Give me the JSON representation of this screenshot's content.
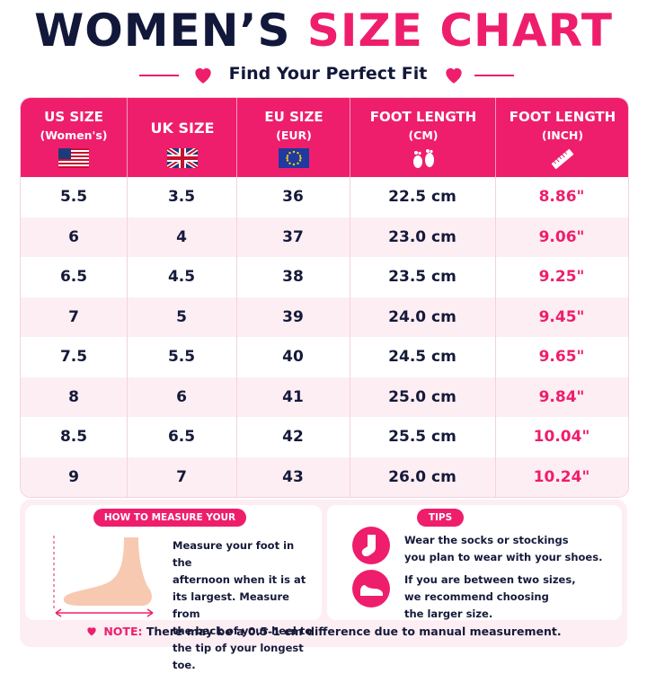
{
  "title": {
    "part1": "WOMEN’S",
    "part2": "SIZE CHART"
  },
  "subtitle": "Find Your Perfect Fit",
  "colors": {
    "accent": "#ee1e6c",
    "navy": "#12183a",
    "row_tint": "#fdeef3"
  },
  "table": {
    "headers": [
      {
        "line1": "US SIZE",
        "line2": "(Women's)",
        "icon": "us-flag-icon"
      },
      {
        "line1": "UK SIZE",
        "line2": "",
        "icon": "uk-flag-icon"
      },
      {
        "line1": "EU SIZE",
        "line2": "(EUR)",
        "icon": "eu-flag-icon"
      },
      {
        "line1": "FOOT LENGTH",
        "line2": "(CM)",
        "icon": "footprint-icon"
      },
      {
        "line1": "FOOT LENGTH",
        "line2": "(INCH)",
        "icon": "ruler-icon"
      }
    ],
    "rows": [
      [
        "5.5",
        "3.5",
        "36",
        "22.5 cm",
        "8.86\""
      ],
      [
        "6",
        "4",
        "37",
        "23.0 cm",
        "9.06\""
      ],
      [
        "6.5",
        "4.5",
        "38",
        "23.5 cm",
        "9.25\""
      ],
      [
        "7",
        "5",
        "39",
        "24.0 cm",
        "9.45\""
      ],
      [
        "7.5",
        "5.5",
        "40",
        "24.5 cm",
        "9.65\""
      ],
      [
        "8",
        "6",
        "41",
        "25.0 cm",
        "9.84\""
      ],
      [
        "8.5",
        "6.5",
        "42",
        "25.5 cm",
        "10.04\""
      ],
      [
        "9",
        "7",
        "43",
        "26.0 cm",
        "10.24\""
      ]
    ]
  },
  "measure": {
    "label": "HOW TO MEASURE YOUR FOOT",
    "lines": [
      "Measure your foot in the",
      "afternoon when it is at",
      "its largest. Measure from",
      "the back of your heel to",
      "the tip of your longest toe."
    ]
  },
  "tips": {
    "label": "TIPS",
    "tip1": [
      "Wear the socks or stockings",
      "you plan to wear with your shoes."
    ],
    "tip2": [
      "If you are between two sizes,",
      "we recommend choosing",
      "the larger size."
    ]
  },
  "note": {
    "label": "NOTE:",
    "text": "There may be a 0.5-1 cm difference due to manual measurement."
  }
}
